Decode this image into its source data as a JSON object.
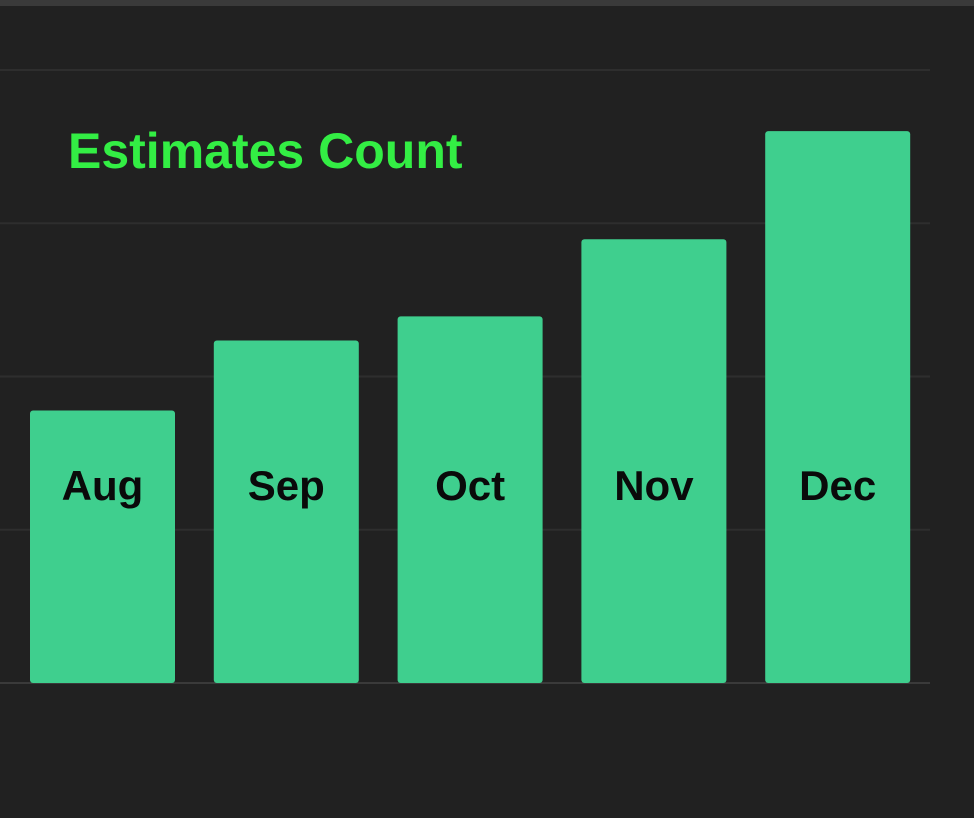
{
  "chart_data": {
    "type": "bar",
    "title": "Estimates Count",
    "xlabel": "",
    "ylabel": "",
    "categories": [
      "Aug",
      "Sep",
      "Oct",
      "Nov",
      "Dec"
    ],
    "values": [
      272,
      342,
      366,
      443,
      551
    ],
    "ylim": [
      0,
      612
    ],
    "grid": true,
    "legend": "none",
    "bar_color": "#3fcf8e",
    "title_color": "#33ee44",
    "label_color": "#0a0a0a",
    "background": "#212121"
  }
}
